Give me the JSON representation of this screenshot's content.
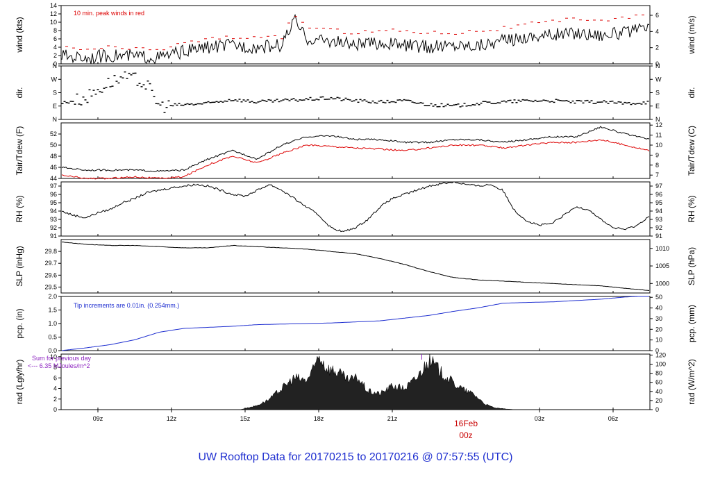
{
  "footer": {
    "prefix": "UW Rooftop Data for",
    "start": "20170215",
    "to": "to",
    "end": "20170216",
    "at": "@ 07:57:55",
    "tz": "(UTC)"
  },
  "colors": {
    "primary": "#000000",
    "accent_red": "#dd0000",
    "blue": "#1f2fd0",
    "purple": "#8a1fbf",
    "date_red": "#c80000"
  },
  "chart_data": [
    {
      "type": "line",
      "id": "wind",
      "ylabel": "wind (kts)",
      "ylabel_right": "wind (m/s)",
      "ylim": [
        0,
        14
      ],
      "yticks": [
        0,
        2,
        4,
        6,
        8,
        10,
        12,
        14
      ],
      "yticks_right": [
        0,
        2,
        4,
        6
      ],
      "annotation": "10 min. peak winds in red",
      "x_hours": [
        7.5,
        8.5,
        9.5,
        10.5,
        11.5,
        12.5,
        13.5,
        14.5,
        15.5,
        16.5,
        17.0,
        17.5,
        18.5,
        19.5,
        20.5,
        21.5,
        22.5,
        23.5,
        24.5,
        25.5,
        26.5,
        27.5,
        28.5,
        29.5,
        30.5,
        31.5
      ],
      "values": [
        2.0,
        1.5,
        2.0,
        1.8,
        1.5,
        3.0,
        4.0,
        4.5,
        4.0,
        4.5,
        10.5,
        6.0,
        5.5,
        4.5,
        5.0,
        4.5,
        4.0,
        4.5,
        4.5,
        5.5,
        6.5,
        7.0,
        7.5,
        7.0,
        7.5,
        8.5
      ],
      "peaks": [
        4.0,
        3.5,
        4.0,
        3.5,
        3.5,
        5.0,
        6.0,
        6.5,
        6.0,
        6.5,
        12.0,
        9.0,
        8.0,
        7.5,
        8.0,
        8.0,
        7.5,
        7.5,
        8.0,
        8.5,
        9.5,
        10.0,
        11.0,
        10.5,
        11.0,
        12.0
      ]
    },
    {
      "type": "scatter",
      "id": "dir",
      "ylabel": "dir.",
      "ylabel_right": "dir.",
      "ylim": [
        0,
        4
      ],
      "yticks": [
        "N",
        "E",
        "S",
        "W",
        "N"
      ],
      "x_hours": [
        7.5,
        8.5,
        9.0,
        9.5,
        10.0,
        10.5,
        11.0,
        11.5,
        12.5,
        13.5,
        14.5,
        15.5,
        16.5,
        17.5,
        18.5,
        19.5,
        20.5,
        21.5,
        22.5,
        23.5,
        24.5,
        25.5,
        26.5,
        27.5,
        28.5,
        29.5,
        30.5,
        31.5
      ],
      "values": [
        1.2,
        1.6,
        2.2,
        2.8,
        3.1,
        3.0,
        2.6,
        1.0,
        1.1,
        1.2,
        1.5,
        1.3,
        1.4,
        1.5,
        1.6,
        1.4,
        1.3,
        1.4,
        1.1,
        1.0,
        1.2,
        1.3,
        1.4,
        1.4,
        1.3,
        1.3,
        1.2,
        1.3
      ]
    },
    {
      "type": "line",
      "id": "temp",
      "ylabel": "Tair/Tdew (F)",
      "ylabel_right": "Tair/Tdew (C)",
      "ylim": [
        44,
        54
      ],
      "yticks": [
        44,
        46,
        48,
        50,
        52
      ],
      "yticks_right": [
        7,
        8,
        9,
        10,
        11,
        12
      ],
      "x_hours": [
        7.5,
        8.5,
        9.5,
        10.5,
        11.5,
        12.5,
        13.5,
        14.5,
        15.5,
        16.5,
        17.5,
        18.5,
        19.5,
        20.5,
        21.5,
        22.5,
        23.5,
        24.5,
        25.5,
        26.5,
        27.5,
        28.5,
        29.5,
        30.5,
        31.5
      ],
      "series": [
        {
          "values": [
            46.0,
            45.5,
            45.5,
            45.5,
            45.3,
            45.5,
            47.5,
            49.0,
            47.5,
            50.0,
            51.5,
            51.7,
            51.0,
            51.0,
            50.5,
            50.5,
            51.0,
            51.0,
            50.5,
            51.0,
            51.5,
            51.5,
            53.3,
            52.0,
            51.0
          ]
        },
        {
          "values": [
            44.6,
            44.0,
            44.0,
            44.3,
            44.0,
            44.3,
            46.5,
            48.0,
            46.8,
            48.5,
            50.0,
            49.8,
            49.5,
            49.3,
            49.0,
            49.5,
            50.0,
            50.0,
            49.5,
            50.0,
            50.5,
            50.5,
            51.0,
            50.0,
            49.0
          ]
        }
      ]
    },
    {
      "type": "line",
      "id": "rh",
      "ylabel": "RH (%)",
      "ylabel_right": "RH (%)",
      "ylim": [
        91,
        97.5
      ],
      "yticks": [
        91,
        92,
        93,
        94,
        95,
        96,
        97
      ],
      "x_hours": [
        7.5,
        8.0,
        8.5,
        9.0,
        9.5,
        10.0,
        10.5,
        11.0,
        11.5,
        12.0,
        12.5,
        13.0,
        13.5,
        14.0,
        14.5,
        15.0,
        15.5,
        16.0,
        16.5,
        17.0,
        17.5,
        18.0,
        18.5,
        19.0,
        19.5,
        20.0,
        20.5,
        21.0,
        21.5,
        22.0,
        22.5,
        23.0,
        23.5,
        24.0,
        24.5,
        25.0,
        25.5,
        26.0,
        26.5,
        27.0,
        27.5,
        28.0,
        28.5,
        29.0,
        29.5,
        30.0,
        30.5,
        31.0,
        31.5
      ],
      "values": [
        94.0,
        93.5,
        93.2,
        93.8,
        94.2,
        95.0,
        95.5,
        96.2,
        96.5,
        96.8,
        97.0,
        97.2,
        97.0,
        96.5,
        96.0,
        95.8,
        96.5,
        97.2,
        96.5,
        95.5,
        94.5,
        93.5,
        92.0,
        91.5,
        92.0,
        93.0,
        94.5,
        95.5,
        96.0,
        96.5,
        97.0,
        97.3,
        97.5,
        97.2,
        97.0,
        97.2,
        96.5,
        94.0,
        92.8,
        92.3,
        92.5,
        93.5,
        94.5,
        94.2,
        93.0,
        92.0,
        91.8,
        92.3,
        93.5
      ]
    },
    {
      "type": "line",
      "id": "slp",
      "ylabel": "SLP (inHg)",
      "ylabel_right": "SLP (hPa)",
      "ylim": [
        29.45,
        29.9
      ],
      "yticks": [
        29.5,
        29.6,
        29.7,
        29.8
      ],
      "yticks_right": [
        1000,
        1005,
        1010
      ],
      "x_hours": [
        7.5,
        8.5,
        9.5,
        10.5,
        11.5,
        12.5,
        13.5,
        14.5,
        15.5,
        16.5,
        17.5,
        18.5,
        19.5,
        20.5,
        21.5,
        22.5,
        23.5,
        24.5,
        25.5,
        26.5,
        27.5,
        28.5,
        29.5,
        30.5,
        31.5
      ],
      "values": [
        29.88,
        29.86,
        29.85,
        29.85,
        29.84,
        29.83,
        29.83,
        29.85,
        29.84,
        29.83,
        29.82,
        29.8,
        29.78,
        29.74,
        29.69,
        29.63,
        29.58,
        29.56,
        29.55,
        29.54,
        29.53,
        29.52,
        29.51,
        29.49,
        29.47
      ]
    },
    {
      "type": "line",
      "id": "pcp",
      "ylabel": "pcp. (in)",
      "ylabel_right": "pcp. (mm)",
      "ylim": [
        0,
        2.0
      ],
      "yticks": [
        0.0,
        0.5,
        1.0,
        1.5,
        2.0
      ],
      "yticks_right": [
        0,
        10,
        20,
        30,
        40,
        50
      ],
      "annotation": "Tip increments are 0.01in. (0.254mm.)",
      "x_hours": [
        7.5,
        8.5,
        9.5,
        10.5,
        11.5,
        12.5,
        13.5,
        14.5,
        15.5,
        16.5,
        17.5,
        18.5,
        19.5,
        20.5,
        21.5,
        22.5,
        23.5,
        24.5,
        25.5,
        26.5,
        27.5,
        28.5,
        29.5,
        30.5,
        31.5
      ],
      "values": [
        0.0,
        0.1,
        0.22,
        0.4,
        0.68,
        0.82,
        0.86,
        0.9,
        0.96,
        0.98,
        1.0,
        1.02,
        1.06,
        1.1,
        1.2,
        1.3,
        1.45,
        1.58,
        1.75,
        1.78,
        1.8,
        1.85,
        1.9,
        1.98,
        2.02
      ]
    },
    {
      "type": "area",
      "id": "rad",
      "ylabel": "rad (Lgly/hr)",
      "ylabel_right": "rad (W/m^2)",
      "ylim": [
        0,
        10.5
      ],
      "yticks": [
        0,
        2,
        4,
        6,
        8,
        10
      ],
      "yticks_right": [
        0,
        20,
        40,
        60,
        80,
        100,
        120
      ],
      "annotation_1": "Sum for previous day",
      "annotation_2": "<--- 6.35 MJoules/m^2",
      "x_hours": [
        14.8,
        15.5,
        16.0,
        16.5,
        17.0,
        17.5,
        17.8,
        18.0,
        18.3,
        18.8,
        19.2,
        19.6,
        20.0,
        20.5,
        21.0,
        21.5,
        22.0,
        22.5,
        23.0,
        23.5,
        24.0,
        24.3,
        24.8,
        25.2,
        26.0
      ],
      "values": [
        0.0,
        0.8,
        2.0,
        4.0,
        6.0,
        5.5,
        7.5,
        10.5,
        8.0,
        7.0,
        5.5,
        6.0,
        3.5,
        3.0,
        4.5,
        4.0,
        6.0,
        9.5,
        7.0,
        5.0,
        3.5,
        3.0,
        1.0,
        0.3,
        0.0
      ]
    }
  ],
  "x_axis": {
    "ticks": [
      "09z",
      "12z",
      "15z",
      "18z",
      "21z",
      "03z",
      "06z"
    ],
    "tick_hours": [
      9,
      12,
      15,
      18,
      21,
      27,
      30
    ],
    "date_label": "16Feb",
    "date_sublabel": "00z",
    "date_hour": 24,
    "range_hours": [
      7.5,
      31.5
    ]
  }
}
